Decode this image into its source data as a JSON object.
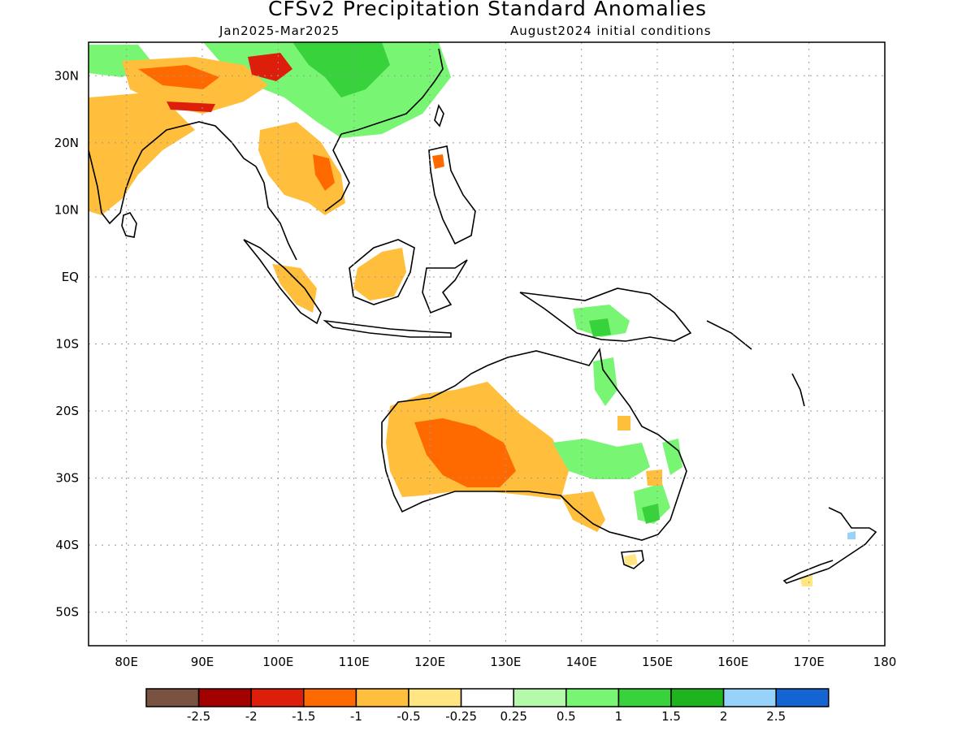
{
  "header": {
    "title": "CFSv2 Precipitation Standard Anomalies",
    "period": "Jan2025-Mar2025",
    "init": "August2024 initial conditions"
  },
  "map": {
    "lon_range": [
      75,
      180
    ],
    "lat_range": [
      -55,
      35
    ],
    "lat_ticks": [
      {
        "v": 30,
        "label": "30N"
      },
      {
        "v": 20,
        "label": "20N"
      },
      {
        "v": 10,
        "label": "10N"
      },
      {
        "v": 0,
        "label": "EQ"
      },
      {
        "v": -10,
        "label": "10S"
      },
      {
        "v": -20,
        "label": "20S"
      },
      {
        "v": -30,
        "label": "30S"
      },
      {
        "v": -40,
        "label": "40S"
      },
      {
        "v": -50,
        "label": "50S"
      }
    ],
    "lon_ticks": [
      {
        "v": 80,
        "label": "80E"
      },
      {
        "v": 90,
        "label": "90E"
      },
      {
        "v": 100,
        "label": "100E"
      },
      {
        "v": 110,
        "label": "110E"
      },
      {
        "v": 120,
        "label": "120E"
      },
      {
        "v": 130,
        "label": "130E"
      },
      {
        "v": 140,
        "label": "140E"
      },
      {
        "v": 150,
        "label": "150E"
      },
      {
        "v": 160,
        "label": "160E"
      },
      {
        "v": 170,
        "label": "170E"
      },
      {
        "v": 180,
        "label": "180"
      }
    ],
    "grid": true
  },
  "colorbar": {
    "colors": [
      "#7a5242",
      "#a50000",
      "#dc1e0a",
      "#ff6a00",
      "#ffbe3c",
      "#ffe682",
      "#ffffff",
      "#b4faaa",
      "#78f573",
      "#37d23c",
      "#1eb41e",
      "#96d2fa",
      "#1464d2"
    ],
    "labels": [
      "-2.5",
      "-2",
      "-1.5",
      "-1",
      "-0.5",
      "-0.25",
      "0.25",
      "0.5",
      "1",
      "1.5",
      "2",
      "2.5"
    ]
  }
}
